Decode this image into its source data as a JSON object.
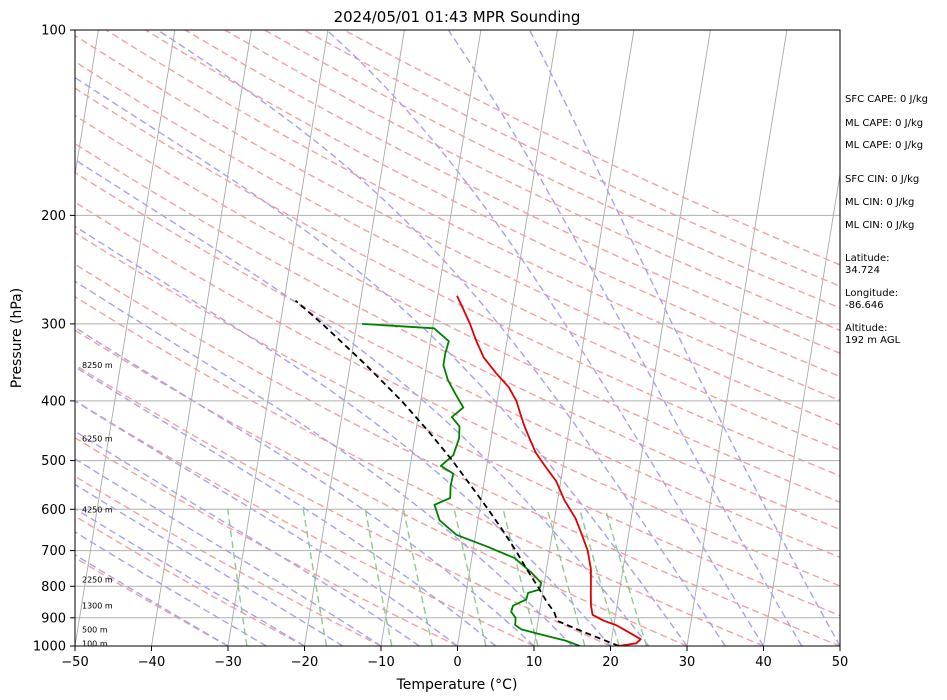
{
  "chart_data": {
    "type": "line",
    "title": "2024/05/01 01:43 MPR Sounding",
    "xlabel": "Temperature (°C)",
    "ylabel": "Pressure (hPa)",
    "xlim": [
      -50,
      50
    ],
    "ylim": [
      1000,
      100
    ],
    "y_scale": "log",
    "grid": true,
    "x_ticks": [
      -50,
      -40,
      -30,
      -20,
      -10,
      0,
      10,
      20,
      30,
      40,
      50
    ],
    "y_ticks": [
      100,
      200,
      300,
      400,
      500,
      600,
      700,
      800,
      900,
      1000
    ],
    "background_lines": {
      "isotherms": "skewed, gray",
      "dry_adiabats": "dashed, red",
      "moist_adiabats": "dashed, blue",
      "mixing_ratio": "dashed, green"
    },
    "colors": {
      "temperature": "#e00000",
      "dewpoint": "#008000",
      "parcel": "#000000",
      "isotherm": "#aaaaaa",
      "dry_adiabat": "#f4a0a0",
      "moist_adiabat": "#a8a0f0",
      "mixing_ratio": "#90c890"
    },
    "series": [
      {
        "key": "temperature",
        "points": [
          [
            1000,
            21.1
          ],
          [
            990,
            23.3
          ],
          [
            975,
            23.8
          ],
          [
            950,
            22.1
          ],
          [
            925,
            20.3
          ],
          [
            910,
            18.6
          ],
          [
            890,
            17.0
          ],
          [
            860,
            16.6
          ],
          [
            820,
            16.3
          ],
          [
            790,
            16.1
          ],
          [
            750,
            15.8
          ],
          [
            700,
            15.0
          ],
          [
            660,
            13.9
          ],
          [
            620,
            12.7
          ],
          [
            580,
            10.9
          ],
          [
            540,
            9.4
          ],
          [
            510,
            7.6
          ],
          [
            485,
            6.1
          ],
          [
            460,
            5.0
          ],
          [
            440,
            4.1
          ],
          [
            420,
            3.3
          ],
          [
            400,
            2.5
          ],
          [
            380,
            1.2
          ],
          [
            360,
            -0.8
          ],
          [
            340,
            -2.7
          ],
          [
            320,
            -4.0
          ],
          [
            300,
            -5.2
          ],
          [
            285,
            -6.3
          ],
          [
            270,
            -7.5
          ]
        ]
      },
      {
        "key": "dewpoint",
        "points": [
          [
            1000,
            16.0
          ],
          [
            980,
            14.0
          ],
          [
            960,
            11.0
          ],
          [
            940,
            8.0
          ],
          [
            925,
            7.1
          ],
          [
            900,
            7.0
          ],
          [
            880,
            6.3
          ],
          [
            860,
            6.4
          ],
          [
            840,
            8.0
          ],
          [
            820,
            8.1
          ],
          [
            810,
            9.5
          ],
          [
            790,
            9.6
          ],
          [
            760,
            8.1
          ],
          [
            720,
            5.6
          ],
          [
            690,
            1.8
          ],
          [
            660,
            -2.5
          ],
          [
            625,
            -5.0
          ],
          [
            590,
            -6.0
          ],
          [
            575,
            -4.1
          ],
          [
            550,
            -4.3
          ],
          [
            525,
            -4.2
          ],
          [
            510,
            -6.0
          ],
          [
            490,
            -4.6
          ],
          [
            460,
            -4.2
          ],
          [
            440,
            -4.4
          ],
          [
            425,
            -5.6
          ],
          [
            410,
            -4.3
          ],
          [
            390,
            -5.6
          ],
          [
            370,
            -6.9
          ],
          [
            350,
            -7.8
          ],
          [
            335,
            -7.8
          ],
          [
            320,
            -7.6
          ],
          [
            305,
            -9.8
          ],
          [
            300,
            -19.3
          ]
        ]
      },
      {
        "key": "parcel",
        "points": [
          [
            1000,
            21.1
          ],
          [
            950,
            16.3
          ],
          [
            910,
            12.5
          ],
          [
            880,
            11.9
          ],
          [
            850,
            10.8
          ],
          [
            800,
            9.2
          ],
          [
            750,
            7.4
          ],
          [
            700,
            5.6
          ],
          [
            650,
            3.5
          ],
          [
            600,
            1.1
          ],
          [
            550,
            -1.6
          ],
          [
            500,
            -4.6
          ],
          [
            450,
            -8.2
          ],
          [
            400,
            -12.5
          ],
          [
            350,
            -17.9
          ],
          [
            300,
            -24.5
          ],
          [
            275,
            -28.5
          ]
        ]
      }
    ],
    "height_labels": [
      "8250 m",
      "6250 m",
      "4250 m",
      "2250 m",
      "1300 m",
      "500 m",
      "100 m"
    ],
    "height_label_pressures": [
      350,
      460,
      600,
      780,
      860,
      940,
      990
    ]
  },
  "annotations": [
    "SFC CAPE: 0 J/kg",
    "ML CAPE: 0 J/kg",
    "ML CAPE: 0 J/kg",
    "SFC CIN: 0 J/kg",
    "ML CIN: 0 J/kg",
    "ML CIN: 0 J/kg",
    "Latitude:",
    "34.724",
    "Longitude:",
    "-86.646",
    "Altitude:",
    "192 m AGL"
  ]
}
